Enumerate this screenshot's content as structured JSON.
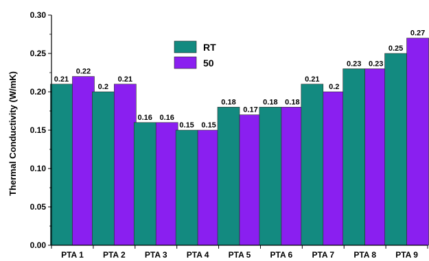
{
  "chart_data": {
    "type": "bar",
    "title": "",
    "xlabel": "",
    "ylabel": "Thermal Conductivity (W/mK)",
    "ylim": [
      0,
      0.3
    ],
    "yticks": [
      "0.00",
      "0.05",
      "0.10",
      "0.15",
      "0.20",
      "0.25",
      "0.30"
    ],
    "categories": [
      "PTA  1",
      "PTA 2",
      "PTA 3",
      "PTA 4",
      "PTA 5",
      "PTA 6",
      "PTA 7",
      "PTA 8",
      "PTA 9"
    ],
    "series": [
      {
        "name": "RT",
        "color": "#138a80",
        "values": [
          0.21,
          0.2,
          0.16,
          0.15,
          0.18,
          0.18,
          0.21,
          0.23,
          0.25
        ],
        "labels": [
          "0.21",
          "0.2",
          "0.16",
          "0.15",
          "0.18",
          "0.18",
          "0.21",
          "0.23",
          "0.25"
        ]
      },
      {
        "name": "50",
        "color": "#8a1ff0",
        "values": [
          0.22,
          0.21,
          0.16,
          0.15,
          0.17,
          0.18,
          0.2,
          0.23,
          0.27
        ],
        "labels": [
          "0.22",
          "0.21",
          "0.16",
          "0.15",
          "0.17",
          "0.18",
          "0.2",
          "0.23",
          "0.27"
        ]
      }
    ],
    "legend": "top-center",
    "grid": false
  }
}
